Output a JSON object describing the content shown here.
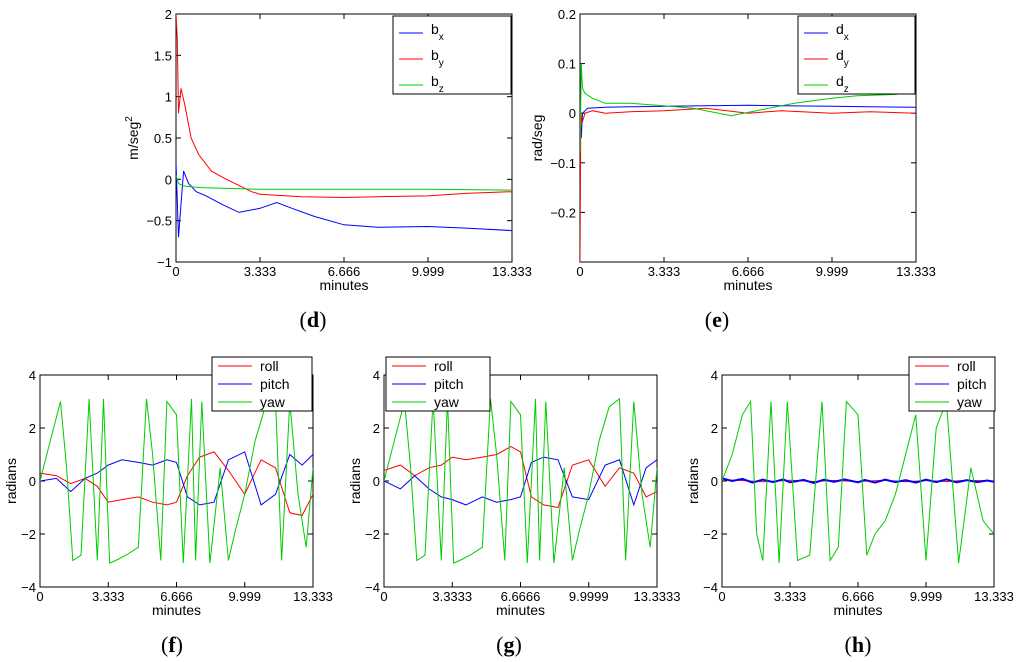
{
  "chart_data": [
    {
      "id": "d",
      "type": "line",
      "panel_label": "d",
      "xlabel": "minutes",
      "ylabel": "m/seg",
      "ylabel_sup": "2",
      "xlim": [
        0,
        13.333
      ],
      "ylim": [
        -1,
        2
      ],
      "xticks": [
        0,
        3.333,
        6.666,
        9.999,
        13.333
      ],
      "xtick_labels": [
        "0",
        "3.333",
        "6.666",
        "9.999",
        "13.333"
      ],
      "yticks": [
        -1,
        -0.5,
        0,
        0.5,
        1,
        1.5,
        2
      ],
      "ytick_labels": [
        "−1",
        "−0.5",
        "0",
        "0.5",
        "1",
        "1.5",
        "2"
      ],
      "legend_position": "top-right",
      "series": [
        {
          "name": "b",
          "sub": "x",
          "color": "#0000ff",
          "x": [
            0,
            0.1,
            0.2,
            0.3,
            0.5,
            0.8,
            1.2,
            1.8,
            2.5,
            3.333,
            4,
            4.6,
            5.5,
            6.666,
            8,
            9.999,
            11.5,
            13.333
          ],
          "y": [
            0.2,
            -0.7,
            -0.3,
            0.1,
            -0.05,
            -0.15,
            -0.2,
            -0.3,
            -0.4,
            -0.35,
            -0.28,
            -0.35,
            -0.45,
            -0.55,
            -0.58,
            -0.57,
            -0.59,
            -0.62
          ]
        },
        {
          "name": "b",
          "sub": "y",
          "color": "#ff0000",
          "x": [
            0,
            0.05,
            0.1,
            0.2,
            0.35,
            0.6,
            0.9,
            1.4,
            2,
            3,
            3.333,
            5,
            6.666,
            8,
            9.999,
            11.5,
            13.333
          ],
          "y": [
            2.0,
            1.7,
            0.8,
            1.1,
            0.9,
            0.5,
            0.3,
            0.1,
            0.0,
            -0.15,
            -0.18,
            -0.21,
            -0.22,
            -0.21,
            -0.2,
            -0.17,
            -0.15
          ]
        },
        {
          "name": "b",
          "sub": "z",
          "color": "#00cc00",
          "x": [
            0,
            0.1,
            0.3,
            0.6,
            1,
            2,
            3.333,
            6.666,
            9.999,
            13.333
          ],
          "y": [
            0.05,
            -0.05,
            -0.08,
            -0.09,
            -0.1,
            -0.11,
            -0.12,
            -0.12,
            -0.12,
            -0.13
          ]
        }
      ]
    },
    {
      "id": "e",
      "type": "line",
      "panel_label": "e",
      "xlabel": "minutes",
      "ylabel": "rad/seg",
      "ylabel_sup": "",
      "xlim": [
        0,
        13.333
      ],
      "ylim": [
        -0.3,
        0.2
      ],
      "xticks": [
        0,
        3.333,
        6.666,
        9.999,
        13.333
      ],
      "xtick_labels": [
        "0",
        "3.333",
        "6.666",
        "9.999",
        "13.333"
      ],
      "yticks": [
        -0.3,
        -0.2,
        -0.1,
        0,
        0.1,
        0.2
      ],
      "ytick_labels": [
        "",
        "−0.2",
        "−0.1",
        "0",
        "0.1",
        "0.2"
      ],
      "legend_position": "top-right",
      "series": [
        {
          "name": "d",
          "sub": "x",
          "color": "#0000ff",
          "x": [
            0,
            0.05,
            0.1,
            0.3,
            1,
            2,
            3.333,
            5,
            6.666,
            8,
            9.999,
            11.5,
            13.333
          ],
          "y": [
            0.0,
            -0.05,
            0.0,
            0.01,
            0.012,
            0.013,
            0.014,
            0.015,
            0.016,
            0.015,
            0.014,
            0.013,
            0.012
          ]
        },
        {
          "name": "d",
          "sub": "y",
          "color": "#ff0000",
          "x": [
            0,
            0.03,
            0.08,
            0.2,
            0.5,
            1,
            2,
            3.333,
            5,
            6.666,
            8,
            9.999,
            11.5,
            13.333
          ],
          "y": [
            -0.3,
            0.0,
            -0.02,
            0.0,
            0.005,
            0.0,
            0.003,
            0.005,
            0.01,
            0.0,
            0.005,
            0.0,
            0.003,
            0.0
          ]
        },
        {
          "name": "d",
          "sub": "z",
          "color": "#00cc00",
          "x": [
            0,
            0.05,
            0.1,
            0.2,
            0.5,
            1,
            2,
            3.333,
            4.5,
            6,
            7,
            8.5,
            9.999,
            11,
            12.5,
            13.333
          ],
          "y": [
            -0.08,
            0.1,
            0.05,
            0.04,
            0.03,
            0.02,
            0.02,
            0.015,
            0.01,
            -0.005,
            0.005,
            0.02,
            0.03,
            0.035,
            0.038,
            0.042
          ]
        }
      ]
    },
    {
      "id": "f",
      "type": "line",
      "panel_label": "f",
      "xlabel": "minutes",
      "ylabel": "radians",
      "ylabel_sup": "",
      "xlim": [
        0,
        13.333
      ],
      "ylim": [
        -4,
        4
      ],
      "xticks": [
        0,
        3.333,
        6.666,
        9.999,
        13.333
      ],
      "xtick_labels": [
        "0",
        "3.333",
        "6.666",
        "9.999",
        "13.333"
      ],
      "yticks": [
        -4,
        -2,
        0,
        2,
        4
      ],
      "ytick_labels": [
        "−4",
        "−2",
        "0",
        "2",
        "4"
      ],
      "legend_position": "top-center",
      "series": [
        {
          "name": "roll",
          "sub": "",
          "color": "#ff0000",
          "x": [
            0,
            0.8,
            1.5,
            2.2,
            2.8,
            3.333,
            4,
            4.8,
            5.5,
            6.2,
            6.666,
            7.2,
            7.8,
            8.5,
            9.2,
            9.999,
            10.8,
            11.5,
            12.2,
            12.8,
            13.333
          ],
          "y": [
            0.3,
            0.2,
            -0.1,
            0.1,
            -0.2,
            -0.8,
            -0.7,
            -0.6,
            -0.8,
            -0.9,
            -0.8,
            0.2,
            0.9,
            1.1,
            0.4,
            -0.5,
            0.8,
            0.5,
            -1.2,
            -1.3,
            -0.5
          ]
        },
        {
          "name": "pitch",
          "sub": "",
          "color": "#0000ff",
          "x": [
            0,
            0.8,
            1.5,
            2.2,
            2.8,
            3.333,
            4,
            4.8,
            5.5,
            6.2,
            6.666,
            7.2,
            7.8,
            8.5,
            9.2,
            9.999,
            10.8,
            11.5,
            12.2,
            12.8,
            13.333
          ],
          "y": [
            0.0,
            0.1,
            -0.4,
            0.1,
            0.3,
            0.6,
            0.8,
            0.7,
            0.6,
            0.8,
            0.7,
            -0.6,
            -0.9,
            -0.8,
            0.8,
            1.1,
            -0.9,
            -0.5,
            1.0,
            0.6,
            1.0
          ]
        },
        {
          "name": "yaw",
          "sub": "",
          "color": "#00cc00",
          "x": [
            0,
            0.5,
            1.0,
            1.3,
            1.6,
            2.0,
            2.4,
            2.8,
            3.1,
            3.4,
            3.7,
            4.2,
            4.8,
            5.2,
            5.5,
            5.9,
            6.2,
            6.666,
            7.0,
            7.4,
            7.6,
            7.9,
            8.3,
            8.8,
            9.2,
            9.5,
            9.999,
            10.5,
            11.0,
            11.5,
            11.8,
            12.2,
            12.6,
            13.0,
            13.333
          ],
          "y": [
            0.0,
            1.5,
            3.0,
            0.5,
            -3.0,
            -2.8,
            3.1,
            -3.0,
            3.1,
            -3.1,
            -3.0,
            -2.8,
            -2.5,
            3.1,
            1.0,
            -3.0,
            3.0,
            2.5,
            -3.1,
            3.1,
            -3.0,
            3.0,
            -3.1,
            0.5,
            -3.0,
            -2.0,
            -0.5,
            1.5,
            2.8,
            3.1,
            -3.0,
            3.0,
            -0.5,
            -2.5,
            0.5
          ]
        }
      ]
    },
    {
      "id": "g",
      "type": "line",
      "panel_label": "g",
      "xlabel": "minutes",
      "ylabel": "radians",
      "ylabel_sup": "",
      "xlim": [
        0,
        13.3333
      ],
      "ylim": [
        -4,
        4
      ],
      "xticks": [
        0,
        3.3333,
        6.6666,
        9.9999,
        13.3333
      ],
      "xtick_labels": [
        "0",
        "3.3333",
        "6.6666",
        "9.9999",
        "13.3333"
      ],
      "yticks": [
        -4,
        -2,
        0,
        2,
        4
      ],
      "ytick_labels": [
        "−4",
        "−2",
        "0",
        "2",
        "4"
      ],
      "legend_position": "top-left",
      "series": [
        {
          "name": "roll",
          "sub": "",
          "color": "#ff0000",
          "x": [
            0,
            0.8,
            1.5,
            2.2,
            2.8,
            3.3333,
            4,
            4.8,
            5.5,
            6.2,
            6.6666,
            7.2,
            7.8,
            8.5,
            9.2,
            9.9999,
            10.8,
            11.5,
            12.2,
            12.8,
            13.3333
          ],
          "y": [
            0.4,
            0.6,
            0.2,
            0.5,
            0.6,
            0.9,
            0.8,
            0.9,
            1.0,
            1.3,
            1.1,
            -0.6,
            -0.9,
            -1.0,
            0.6,
            0.8,
            -0.2,
            0.5,
            0.3,
            -0.6,
            -0.4
          ]
        },
        {
          "name": "pitch",
          "sub": "",
          "color": "#0000ff",
          "x": [
            0,
            0.8,
            1.5,
            2.2,
            2.8,
            3.3333,
            4,
            4.8,
            5.5,
            6.2,
            6.6666,
            7.2,
            7.8,
            8.5,
            9.2,
            9.9999,
            10.8,
            11.5,
            12.2,
            12.8,
            13.3333
          ],
          "y": [
            0.0,
            -0.3,
            0.2,
            -0.3,
            -0.6,
            -0.7,
            -0.9,
            -0.6,
            -0.8,
            -0.7,
            -0.6,
            0.7,
            0.9,
            0.8,
            -0.6,
            -0.7,
            0.6,
            0.8,
            -0.9,
            0.5,
            0.8
          ]
        },
        {
          "name": "yaw",
          "sub": "",
          "color": "#00cc00",
          "x": [
            0,
            0.5,
            1.0,
            1.3,
            1.6,
            2.0,
            2.4,
            2.8,
            3.1,
            3.4,
            3.7,
            4.2,
            4.8,
            5.2,
            5.5,
            5.9,
            6.2,
            6.6666,
            7.0,
            7.4,
            7.6,
            7.9,
            8.3,
            8.8,
            9.2,
            9.5,
            9.9999,
            10.5,
            11.0,
            11.5,
            11.8,
            12.2,
            12.6,
            13.0,
            13.3333
          ],
          "y": [
            0.0,
            1.5,
            3.0,
            0.5,
            -3.0,
            -2.8,
            3.1,
            -3.0,
            3.1,
            -3.1,
            -3.0,
            -2.8,
            -2.5,
            3.1,
            1.0,
            -3.0,
            3.0,
            2.5,
            -3.1,
            3.1,
            -3.0,
            3.0,
            -3.1,
            0.5,
            -3.0,
            -2.0,
            -0.5,
            1.5,
            2.8,
            3.1,
            -3.0,
            3.0,
            -0.5,
            -2.5,
            0.5
          ]
        }
      ]
    },
    {
      "id": "h",
      "type": "line",
      "panel_label": "h",
      "xlabel": "minutes",
      "ylabel": "radians",
      "ylabel_sup": "",
      "xlim": [
        0,
        13.333
      ],
      "ylim": [
        -4,
        4
      ],
      "xticks": [
        0,
        3.333,
        6.666,
        9.999,
        13.333
      ],
      "xtick_labels": [
        "0",
        "3.333",
        "6.666",
        "9.999",
        "13.333"
      ],
      "yticks": [
        -4,
        -2,
        0,
        2,
        4
      ],
      "ytick_labels": [
        "−4",
        "−2",
        "0",
        "2",
        "4"
      ],
      "legend_position": "top-right",
      "series": [
        {
          "name": "roll",
          "sub": "",
          "color": "#ff0000",
          "x": [
            0,
            1,
            2,
            3.333,
            4.5,
            5.5,
            6.666,
            8,
            9,
            9.999,
            11,
            12,
            13.333
          ],
          "y": [
            0.05,
            0.02,
            -0.03,
            0.03,
            -0.02,
            0.02,
            -0.02,
            0.03,
            -0.03,
            0.02,
            -0.02,
            0.03,
            0.0
          ]
        },
        {
          "name": "pitch",
          "sub": "",
          "color": "#0000ff",
          "x": [
            0,
            0.5,
            1,
            1.5,
            2,
            2.5,
            3,
            3.333,
            4,
            4.5,
            5,
            5.5,
            6,
            6.666,
            7,
            7.5,
            8,
            8.5,
            9,
            9.5,
            9.999,
            10.5,
            11,
            11.5,
            12,
            12.5,
            13,
            13.333
          ],
          "y": [
            0.1,
            0.0,
            0.08,
            -0.06,
            0.05,
            -0.04,
            0.06,
            -0.05,
            0.04,
            -0.07,
            0.05,
            -0.03,
            0.06,
            -0.05,
            0.04,
            -0.06,
            0.05,
            -0.04,
            0.03,
            -0.06,
            0.05,
            -0.04,
            0.06,
            -0.05,
            0.03,
            -0.04,
            0.02,
            -0.03
          ]
        },
        {
          "name": "yaw",
          "sub": "",
          "color": "#00cc00",
          "x": [
            0,
            0.5,
            1.0,
            1.4,
            1.7,
            2.0,
            2.4,
            2.8,
            3.2,
            3.7,
            4.3,
            4.9,
            5.3,
            5.7,
            6.1,
            6.666,
            7.1,
            7.5,
            8.0,
            8.5,
            9.0,
            9.5,
            9.999,
            10.5,
            11.0,
            11.6,
            12.2,
            12.8,
            13.333
          ],
          "y": [
            0.0,
            1.0,
            2.5,
            3.0,
            -2.0,
            -3.0,
            3.0,
            -3.1,
            3.0,
            -3.0,
            -2.8,
            3.0,
            -3.0,
            -2.5,
            3.0,
            2.5,
            -2.8,
            -2.0,
            -1.5,
            -0.5,
            1.0,
            2.5,
            -3.0,
            2.0,
            3.0,
            -3.1,
            0.5,
            -1.5,
            -2.0
          ]
        }
      ]
    }
  ]
}
